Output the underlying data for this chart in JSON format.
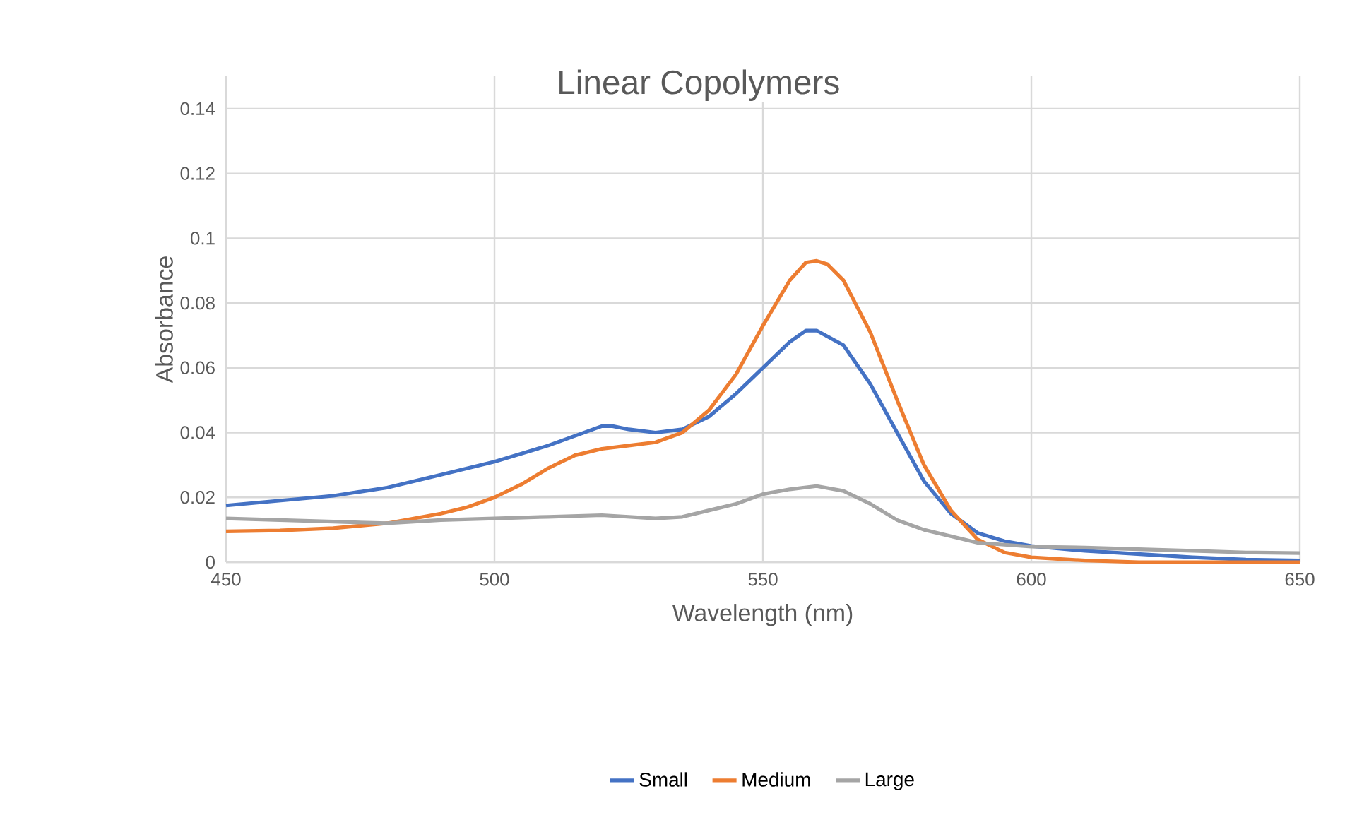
{
  "chart_data": {
    "type": "line",
    "title": "Linear Copolymers",
    "xlabel": "Wavelength (nm)",
    "ylabel": "Absorbance",
    "xlim": [
      450,
      650
    ],
    "xticks": [
      450,
      500,
      550,
      600,
      650
    ],
    "ylim": [
      0,
      0.15
    ],
    "yticks": [
      0,
      0.02,
      0.04,
      0.06,
      0.08,
      0.1,
      0.12,
      0.14
    ],
    "grid": true,
    "legend": "bottom",
    "marker": "none",
    "line_style": "solid",
    "series": [
      {
        "name": "Small",
        "color": "#4472c4",
        "x": [
          450,
          460,
          470,
          480,
          490,
          500,
          510,
          515,
          520,
          522,
          525,
          530,
          535,
          540,
          545,
          550,
          555,
          558,
          560,
          565,
          570,
          575,
          580,
          585,
          590,
          595,
          600,
          610,
          620,
          630,
          640,
          650
        ],
        "values": [
          0.0175,
          0.019,
          0.0205,
          0.023,
          0.027,
          0.031,
          0.036,
          0.039,
          0.042,
          0.042,
          0.041,
          0.04,
          0.041,
          0.045,
          0.052,
          0.06,
          0.068,
          0.0715,
          0.0715,
          0.067,
          0.055,
          0.04,
          0.025,
          0.015,
          0.009,
          0.0065,
          0.005,
          0.0035,
          0.0025,
          0.0015,
          0.0008,
          0.0005
        ]
      },
      {
        "name": "Medium",
        "color": "#ed7d31",
        "x": [
          450,
          460,
          470,
          480,
          490,
          495,
          500,
          505,
          510,
          515,
          520,
          525,
          530,
          535,
          540,
          545,
          550,
          555,
          558,
          560,
          562,
          565,
          570,
          575,
          580,
          585,
          590,
          595,
          600,
          610,
          620,
          650
        ],
        "values": [
          0.0095,
          0.0098,
          0.0105,
          0.012,
          0.015,
          0.017,
          0.02,
          0.024,
          0.029,
          0.033,
          0.035,
          0.036,
          0.037,
          0.04,
          0.047,
          0.058,
          0.073,
          0.087,
          0.0925,
          0.093,
          0.092,
          0.087,
          0.071,
          0.05,
          0.03,
          0.016,
          0.007,
          0.003,
          0.0015,
          0.0005,
          0,
          0
        ]
      },
      {
        "name": "Large",
        "color": "#a5a5a5",
        "x": [
          450,
          460,
          470,
          480,
          490,
          500,
          510,
          520,
          530,
          535,
          540,
          545,
          550,
          555,
          560,
          565,
          570,
          575,
          580,
          585,
          590,
          600,
          610,
          620,
          630,
          640,
          650
        ],
        "values": [
          0.0135,
          0.013,
          0.0125,
          0.012,
          0.013,
          0.0135,
          0.014,
          0.0145,
          0.0135,
          0.014,
          0.016,
          0.018,
          0.021,
          0.0225,
          0.0235,
          0.022,
          0.018,
          0.013,
          0.01,
          0.008,
          0.006,
          0.0048,
          0.0045,
          0.004,
          0.0035,
          0.003,
          0.0028
        ]
      }
    ]
  }
}
